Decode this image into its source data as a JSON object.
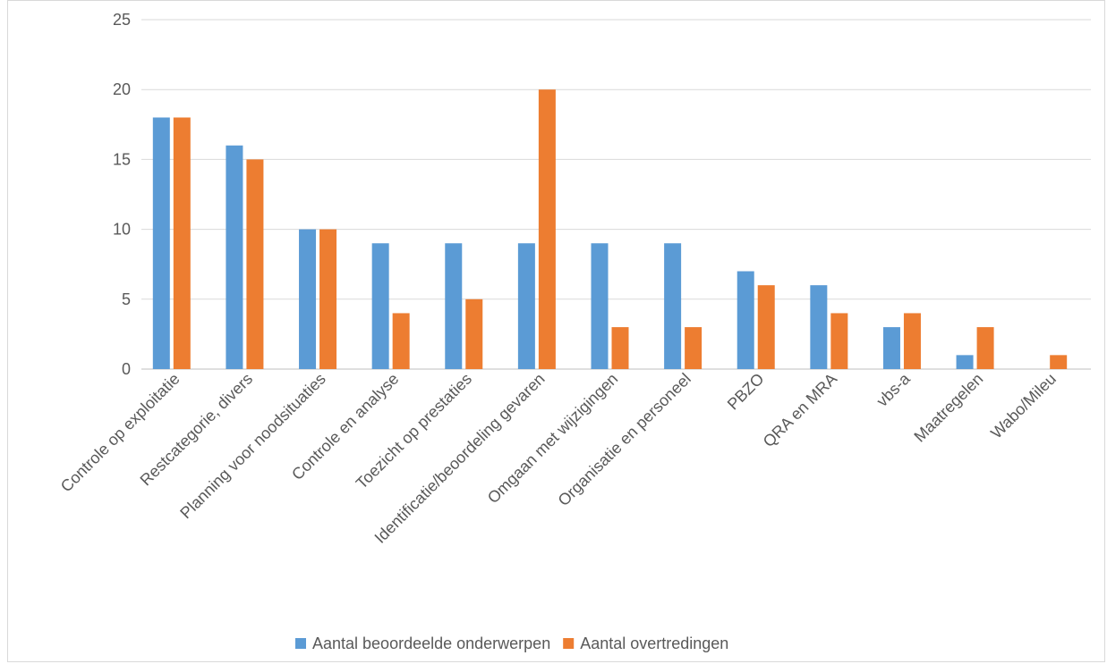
{
  "chart_data": {
    "type": "bar",
    "categories": [
      "Controle op exploitatie",
      "Restcategorie, divers",
      "Planning voor noodsituaties",
      "Controle en analyse",
      "Toezicht op prestaties",
      "Identificatie/beoordeling gevaren",
      "Omgaan met wijzigingen",
      "Organisatie en personeel",
      "PBZO",
      "QRA en MRA",
      "vbs-a",
      "Maatregelen",
      "Wabo/Mileu"
    ],
    "series": [
      {
        "name": "Aantal beoordeelde onderwerpen",
        "color": "#5b9bd5",
        "values": [
          18,
          16,
          10,
          9,
          9,
          9,
          9,
          9,
          7,
          6,
          3,
          1,
          0
        ]
      },
      {
        "name": "Aantal overtredingen",
        "color": "#ed7d31",
        "values": [
          18,
          15,
          10,
          4,
          5,
          20,
          3,
          3,
          6,
          4,
          4,
          3,
          1
        ]
      }
    ],
    "yticks": [
      "0",
      "5",
      "10",
      "15",
      "20",
      "25"
    ],
    "ylim": [
      0,
      25
    ],
    "grid": true,
    "legend_position": "bottom",
    "title": "",
    "xlabel": "",
    "ylabel": ""
  }
}
